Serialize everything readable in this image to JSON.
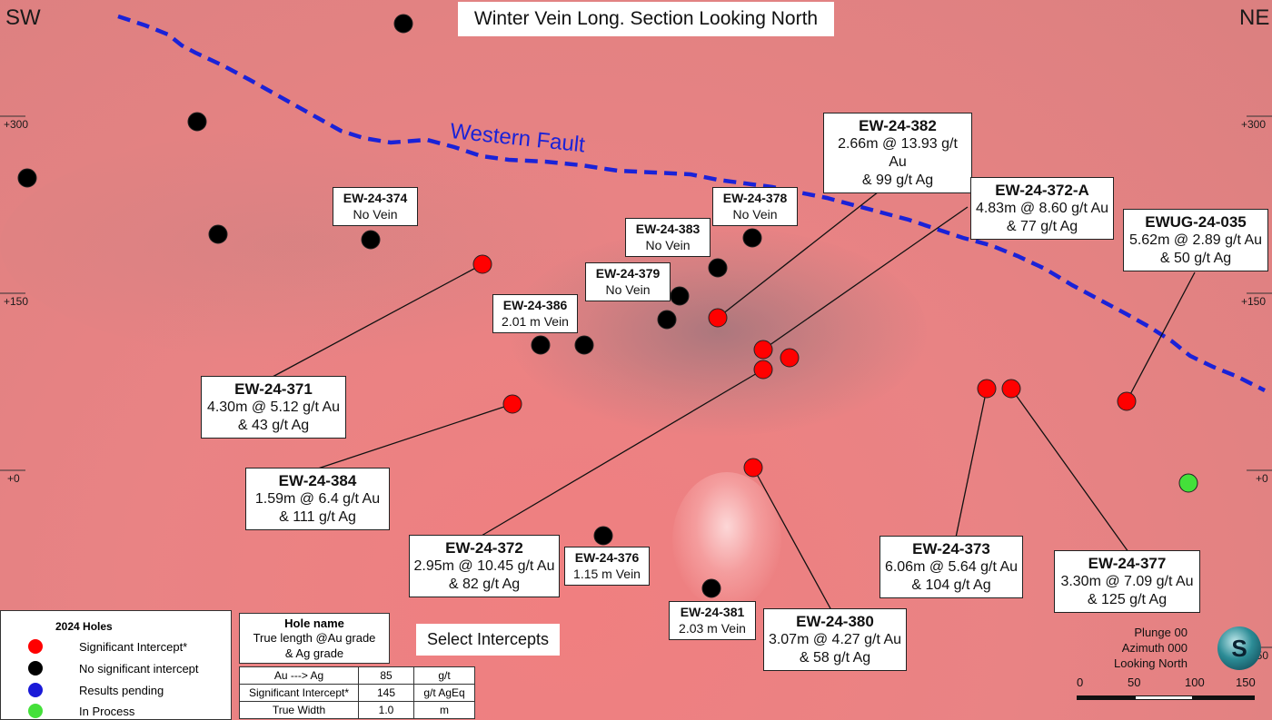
{
  "title": "Winter Vein Long. Section Looking North",
  "orientation": {
    "left": "SW",
    "right": "NE"
  },
  "elevations": {
    "left": [
      "+300",
      "+150",
      "+0"
    ],
    "right": [
      "+300",
      "+150",
      "+0",
      "-150"
    ]
  },
  "fault_label": "Western Fault",
  "callouts": [
    {
      "id": "EW-24-382",
      "name": "EW-24-382",
      "lines": [
        "2.66m @ 13.93 g/t Au",
        "& 99 g/t Ag"
      ]
    },
    {
      "id": "EW-24-372-A",
      "name": "EW-24-372-A",
      "lines": [
        "4.83m @ 8.60 g/t Au",
        "& 77 g/t Ag"
      ]
    },
    {
      "id": "EWUG-24-035",
      "name": "EWUG-24-035",
      "lines": [
        "5.62m @ 2.89 g/t Au",
        "& 50 g/t Ag"
      ]
    },
    {
      "id": "EW-24-374",
      "name": "EW-24-374",
      "lines": [
        "No Vein"
      ]
    },
    {
      "id": "EW-24-378",
      "name": "EW-24-378",
      "lines": [
        "No Vein"
      ]
    },
    {
      "id": "EW-24-383",
      "name": "EW-24-383",
      "lines": [
        "No Vein"
      ]
    },
    {
      "id": "EW-24-379",
      "name": "EW-24-379",
      "lines": [
        "No Vein"
      ]
    },
    {
      "id": "EW-24-386",
      "name": "EW-24-386",
      "lines": [
        "2.01 m Vein"
      ]
    },
    {
      "id": "EW-24-371",
      "name": "EW-24-371",
      "lines": [
        "4.30m @ 5.12 g/t Au",
        "& 43 g/t Ag"
      ]
    },
    {
      "id": "EW-24-384",
      "name": "EW-24-384",
      "lines": [
        "1.59m @ 6.4 g/t Au",
        "& 111 g/t Ag"
      ]
    },
    {
      "id": "EW-24-372",
      "name": "EW-24-372",
      "lines": [
        "2.95m @ 10.45 g/t Au",
        "& 82 g/t Ag"
      ]
    },
    {
      "id": "EW-24-376",
      "name": "EW-24-376",
      "lines": [
        "1.15 m Vein"
      ]
    },
    {
      "id": "EW-24-381",
      "name": "EW-24-381",
      "lines": [
        "2.03 m Vein"
      ]
    },
    {
      "id": "EW-24-380",
      "name": "EW-24-380",
      "lines": [
        "3.07m @ 4.27 g/t Au",
        "& 58 g/t Ag"
      ]
    },
    {
      "id": "EW-24-373",
      "name": "EW-24-373",
      "lines": [
        "6.06m @ 5.64 g/t Au",
        "& 104 g/t Ag"
      ]
    },
    {
      "id": "EW-24-377",
      "name": "EW-24-377",
      "lines": [
        "3.30m @ 7.09 g/t Au",
        "& 125 g/t Ag"
      ]
    }
  ],
  "legend": {
    "title": "2024 Holes",
    "items": [
      {
        "label": "Significant Intercept*",
        "color": "#ff0000"
      },
      {
        "label": "No significant intercept",
        "color": "#000000"
      },
      {
        "label": "Results pending",
        "color": "#1a1ad8"
      },
      {
        "label": "In Process",
        "color": "#44e03a"
      }
    ]
  },
  "key_box": {
    "line1": "Hole name",
    "line2": "True length @Au grade",
    "line3": "& Ag grade"
  },
  "select_button": "Select Intercepts",
  "parameters": [
    [
      "Au ---> Ag",
      "85",
      "g/t"
    ],
    [
      "Significant Intercept*",
      "145",
      "g/t AgEq"
    ],
    [
      "True Width",
      "1.0",
      "m"
    ]
  ],
  "view_info": {
    "plunge": "Plunge 00",
    "azimuth": "Azimuth 000",
    "looking": "Looking North"
  },
  "scale": {
    "labels": [
      "0",
      "50",
      "100",
      "150"
    ]
  },
  "compass_letter": "S",
  "colors": {
    "fault": "#1a22d8",
    "significant": "#ff0000",
    "none": "#000000",
    "in_process": "#44e03a"
  }
}
